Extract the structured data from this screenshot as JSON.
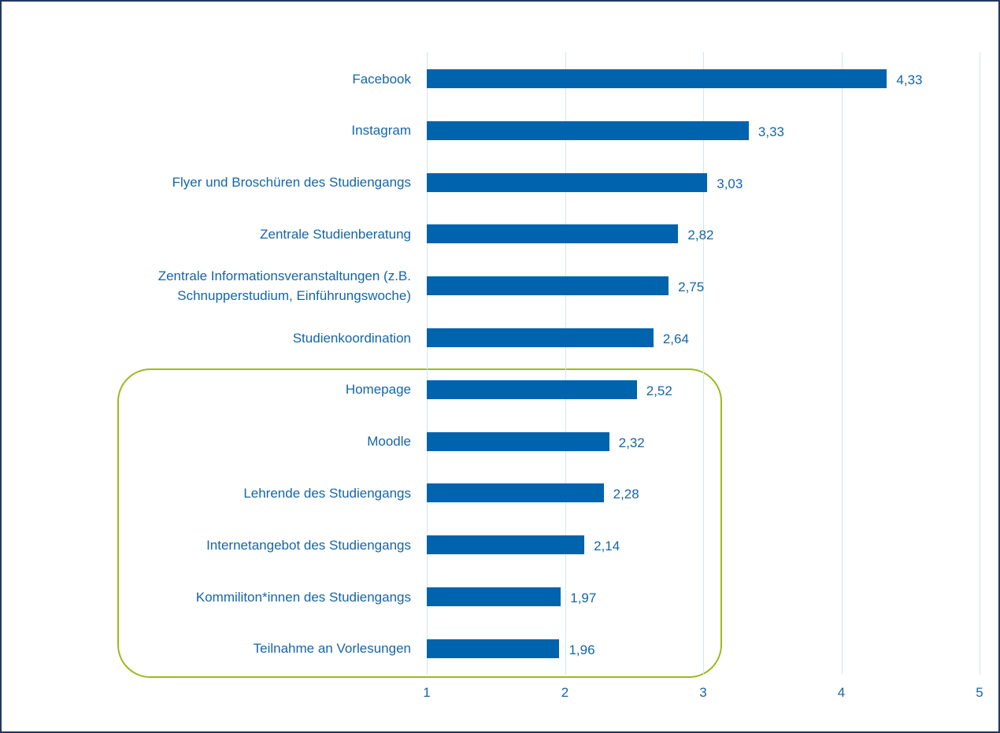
{
  "chart_data": {
    "type": "barh",
    "categories": [
      "Facebook",
      "Instagram",
      "Flyer und Broschüren des Studiengangs",
      "Zentrale Studienberatung",
      "Zentrale Informationsveranstaltungen (z.B. Schnupperstudium, Einführungswoche)",
      "Studienkoordination",
      "Homepage",
      "Moodle",
      "Lehrende des Studiengangs",
      "Internetangebot des Studiengangs",
      "Kommiliton*innen des Studiengangs",
      "Teilnahme an Vorlesungen"
    ],
    "values": [
      4.33,
      3.33,
      3.03,
      2.82,
      2.75,
      2.64,
      2.52,
      2.32,
      2.28,
      2.14,
      1.97,
      1.96
    ],
    "value_labels": [
      "4,33",
      "3,33",
      "3,03",
      "2,82",
      "2,75",
      "2,64",
      "2,52",
      "2,32",
      "2,28",
      "2,14",
      "1,97",
      "1,96"
    ],
    "color": "#0063ad",
    "xlim": [
      1,
      5
    ],
    "xticks": [
      1,
      2,
      3,
      4,
      5
    ],
    "grid": true
  }
}
